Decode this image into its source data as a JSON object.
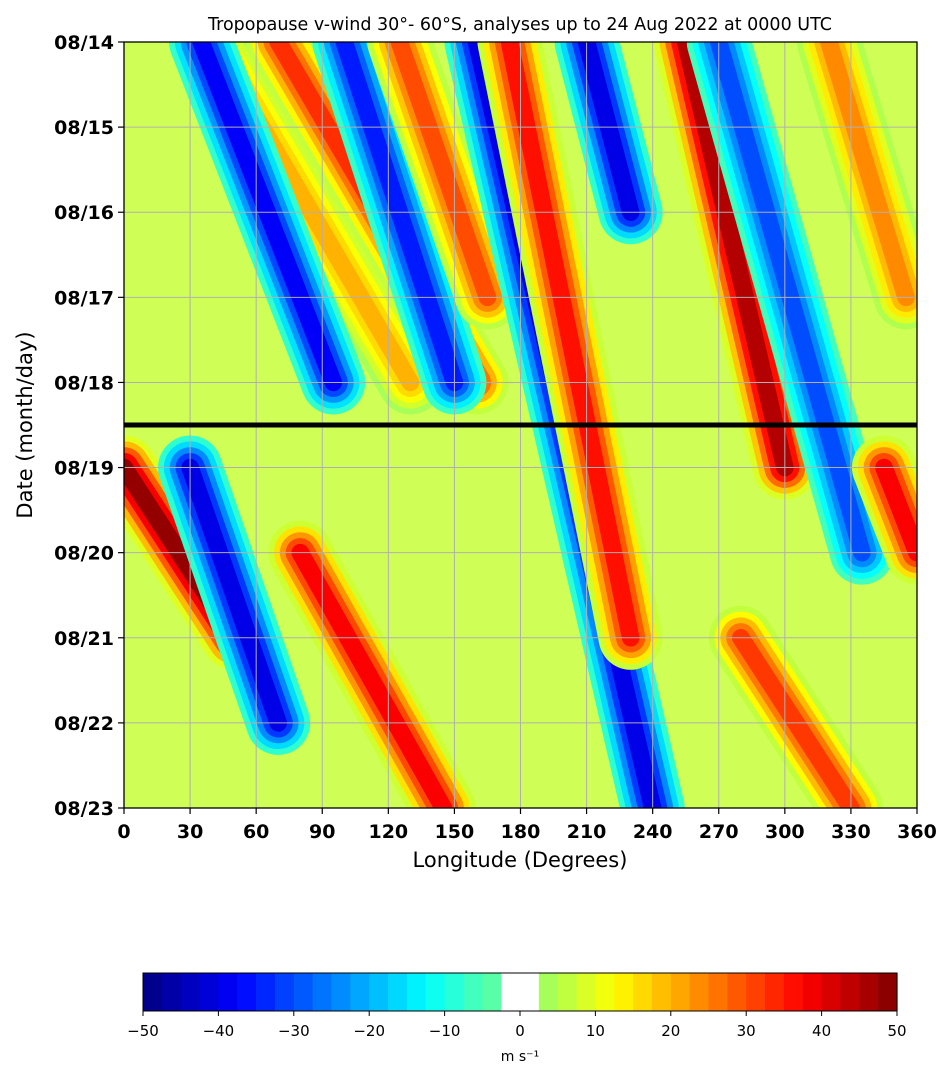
{
  "chart_data": {
    "type": "heatmap",
    "title": "Tropopause v-wind 30°- 60°S, analyses up to 24 Aug 2022 at 0000 UTC",
    "xlabel": "Longitude (Degrees)",
    "ylabel": "Date (month/day)",
    "x_ticks": [
      0,
      30,
      60,
      90,
      120,
      150,
      180,
      210,
      240,
      270,
      300,
      330,
      360
    ],
    "x_tick_labels": [
      "0",
      "30",
      "60",
      "90",
      "120",
      "150",
      "180",
      "210",
      "240",
      "270",
      "300",
      "330",
      "360"
    ],
    "xlim": [
      0,
      360
    ],
    "y_tick_labels": [
      "08/14",
      "08/15",
      "08/16",
      "08/17",
      "08/18",
      "08/19",
      "08/20",
      "08/21",
      "08/22",
      "08/23"
    ],
    "ylim": [
      "08/14",
      "08/23"
    ],
    "y_inverted": true,
    "grid": true,
    "reference_line": {
      "date": "08/18",
      "hour_utc": 12,
      "color": "#000000"
    },
    "colormap": "jet",
    "colorbar": {
      "orientation": "horizontal",
      "placement": "bottom",
      "range": [
        -50,
        50
      ],
      "step": 2.5,
      "blank_interval": [
        -2.5,
        2.5
      ],
      "tick_values": [
        -50,
        -40,
        -30,
        -20,
        -10,
        0,
        10,
        20,
        30,
        40,
        50
      ],
      "tick_labels": [
        "−50",
        "−40",
        "−30",
        "−20",
        "−10",
        "0",
        "10",
        "20",
        "30",
        "40",
        "50"
      ],
      "label": "m s⁻¹"
    },
    "wave_features": [
      {
        "sign": "positive",
        "start_lon": 40,
        "start_date": "08/14",
        "end_lon": 130,
        "end_date": "08/18",
        "peak": 20
      },
      {
        "sign": "negative",
        "start_lon": 35,
        "start_date": "08/14",
        "end_lon": 95,
        "end_date": "08/18",
        "peak": -38
      },
      {
        "sign": "positive",
        "start_lon": 70,
        "start_date": "08/14",
        "end_lon": 160,
        "end_date": "08/18",
        "peak": 33
      },
      {
        "sign": "negative",
        "start_lon": 100,
        "start_date": "08/14",
        "end_lon": 150,
        "end_date": "08/18",
        "peak": -35
      },
      {
        "sign": "positive",
        "start_lon": 125,
        "start_date": "08/14",
        "end_lon": 165,
        "end_date": "08/17",
        "peak": 30
      },
      {
        "sign": "negative",
        "start_lon": 160,
        "start_date": "08/14",
        "end_lon": 240,
        "end_date": "08/23",
        "peak": -40
      },
      {
        "sign": "positive",
        "start_lon": 175,
        "start_date": "08/14",
        "end_lon": 230,
        "end_date": "08/21",
        "peak": 36
      },
      {
        "sign": "negative",
        "start_lon": 210,
        "start_date": "08/14",
        "end_lon": 230,
        "end_date": "08/16",
        "peak": -40
      },
      {
        "sign": "positive",
        "start_lon": 255,
        "start_date": "08/14",
        "end_lon": 300,
        "end_date": "08/19",
        "peak": 45
      },
      {
        "sign": "negative",
        "start_lon": 270,
        "start_date": "08/14",
        "end_lon": 335,
        "end_date": "08/20",
        "peak": -30
      },
      {
        "sign": "positive",
        "start_lon": 320,
        "start_date": "08/14",
        "end_lon": 355,
        "end_date": "08/17",
        "peak": 24
      },
      {
        "sign": "positive",
        "start_lon": 0,
        "start_date": "08/19",
        "end_lon": 50,
        "end_date": "08/21",
        "peak": 48
      },
      {
        "sign": "negative",
        "start_lon": 30,
        "start_date": "08/19",
        "end_lon": 70,
        "end_date": "08/22",
        "peak": -40
      },
      {
        "sign": "positive",
        "start_lon": 80,
        "start_date": "08/20",
        "end_lon": 145,
        "end_date": "08/23",
        "peak": 38
      },
      {
        "sign": "positive",
        "start_lon": 280,
        "start_date": "08/21",
        "end_lon": 330,
        "end_date": "08/23",
        "peak": 32
      },
      {
        "sign": "positive",
        "start_lon": 345,
        "start_date": "08/19",
        "end_lon": 360,
        "end_date": "08/20",
        "peak": 38
      }
    ]
  }
}
